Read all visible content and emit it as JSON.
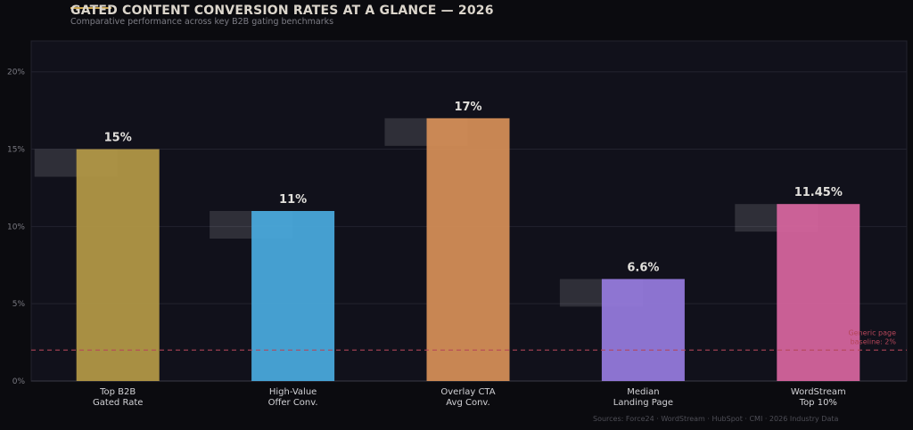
{
  "header": {
    "title": "GATED CONTENT CONVERSION RATES AT A GLANCE — 2026",
    "subtitle": "Comparative performance across key B2B gating benchmarks"
  },
  "footer": {
    "source": "Sources: Force24 · WordStream · HubSpot · CMI · 2026 Industry Data"
  },
  "colors": {
    "background": "#0b0b0f",
    "plot_bg": "#11111b",
    "accent": "#c8a24a",
    "benchmark": "#b5465a"
  },
  "chart_data": {
    "type": "bar",
    "title": "GATED CONTENT CONVERSION RATES AT A GLANCE — 2026",
    "subtitle": "Comparative performance across key B2B gating benchmarks",
    "categories": [
      [
        "Top B2B",
        "Gated Rate"
      ],
      [
        "High-Value",
        "Offer Conv."
      ],
      [
        "Overlay CTA",
        "Avg Conv."
      ],
      [
        "Median",
        "Landing Page"
      ],
      [
        "WordStream",
        "Top 10%"
      ]
    ],
    "values": [
      15,
      11,
      17,
      6.6,
      11.45
    ],
    "value_labels": [
      "15%",
      "11%",
      "17%",
      "6.6%",
      "11.45%"
    ],
    "bar_colors": [
      "#b59a47",
      "#4aabdf",
      "#d89058",
      "#977ce0",
      "#d9669f"
    ],
    "ylim": [
      0,
      22
    ],
    "yticks": [
      0,
      5,
      10,
      15,
      20
    ],
    "ytick_labels": [
      "0%",
      "5%",
      "10%",
      "15%",
      "20%"
    ],
    "xlabel": "",
    "ylabel": "",
    "grid": true,
    "reference_line": {
      "value": 2,
      "label_lines": [
        "Generic page",
        "baseline: 2%"
      ],
      "style": "dashed"
    }
  }
}
